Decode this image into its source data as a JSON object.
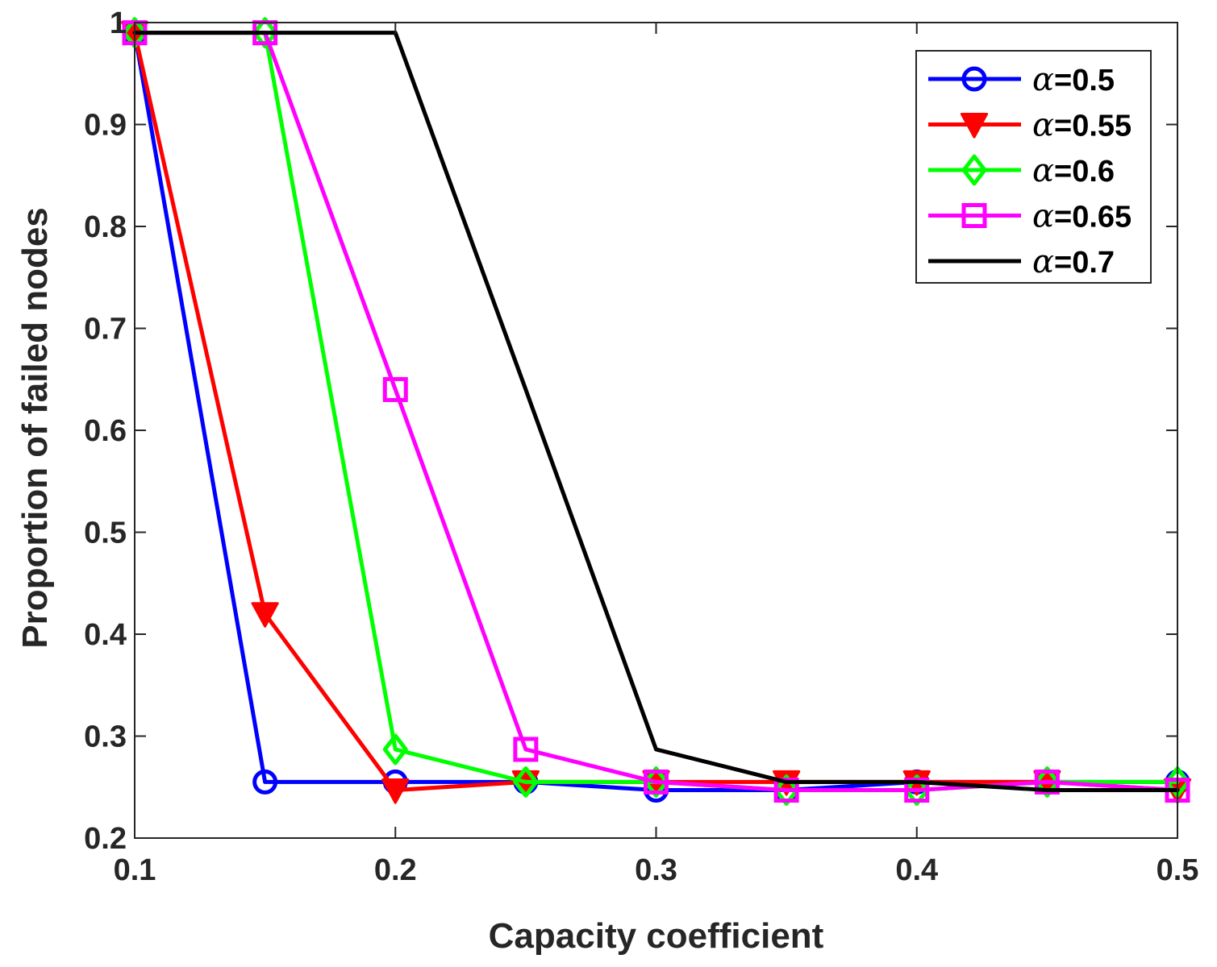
{
  "chart_data": {
    "type": "line",
    "title": "",
    "xlabel": "Capacity coefficient",
    "ylabel": "Proportion of failed nodes",
    "xlim": [
      0.1,
      0.5
    ],
    "ylim": [
      0.2,
      1.0
    ],
    "xticks": [
      "0.1",
      "0.2",
      "0.3",
      "0.4",
      "0.5"
    ],
    "yticks": [
      "0.2",
      "0.3",
      "0.4",
      "0.5",
      "0.6",
      "0.7",
      "0.8",
      "0.9",
      "1"
    ],
    "grid": false,
    "legend_position": "top-right",
    "x": [
      0.1,
      0.15,
      0.2,
      0.25,
      0.3,
      0.35,
      0.4,
      0.45,
      0.5
    ],
    "series": [
      {
        "name": "α=0.5",
        "alpha_symbol": "α",
        "alpha_value": "=0.5",
        "color": "#0000ff",
        "marker": "circle",
        "values": [
          0.99,
          0.255,
          0.255,
          0.255,
          0.247,
          0.247,
          0.255,
          0.255,
          0.255
        ]
      },
      {
        "name": "α=0.55",
        "alpha_symbol": "α",
        "alpha_value": "=0.55",
        "color": "#ff0000",
        "marker": "triangle-down",
        "values": [
          0.99,
          0.42,
          0.247,
          0.255,
          0.255,
          0.255,
          0.255,
          0.255,
          0.247
        ]
      },
      {
        "name": "α=0.6",
        "alpha_symbol": "α",
        "alpha_value": "=0.6",
        "color": "#00ff00",
        "marker": "diamond",
        "values": [
          0.99,
          0.99,
          0.287,
          0.255,
          0.255,
          0.247,
          0.247,
          0.255,
          0.255
        ]
      },
      {
        "name": "α=0.65",
        "alpha_symbol": "α",
        "alpha_value": "=0.65",
        "color": "#ff00ff",
        "marker": "square",
        "values": [
          0.99,
          0.99,
          0.64,
          0.287,
          0.255,
          0.247,
          0.247,
          0.255,
          0.247
        ]
      },
      {
        "name": "α=0.7",
        "alpha_symbol": "α",
        "alpha_value": "=0.7",
        "color": "#000000",
        "marker": "none",
        "values": [
          0.99,
          0.99,
          0.99,
          0.64,
          0.287,
          0.255,
          0.255,
          0.247,
          0.247
        ]
      }
    ]
  }
}
